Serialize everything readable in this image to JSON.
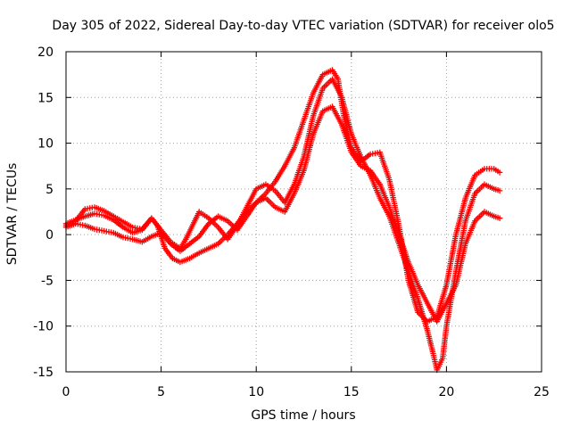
{
  "chart_data": {
    "type": "scatter",
    "title": "Day 305 of 2022, Sidereal Day-to-day VTEC variation (SDTVAR) for receiver olo5",
    "xlabel": "GPS time / hours",
    "ylabel": "SDTVAR / TECUs",
    "xlim": [
      0,
      25
    ],
    "ylim": [
      -15,
      20
    ],
    "xticks": [
      "0",
      "5",
      "10",
      "15",
      "20",
      "25"
    ],
    "yticks": [
      "20",
      "15",
      "10",
      "5",
      "0",
      "-5",
      "-10",
      "-15"
    ],
    "grid": true,
    "marker": "plus",
    "color": "#ff0000",
    "series": [
      {
        "x": [
          0.0,
          0.5,
          1.0,
          1.5,
          2.0,
          2.5,
          3.0,
          3.5,
          4.0,
          4.5,
          4.8,
          5.2,
          5.6,
          6.0,
          6.5,
          7.0,
          7.5,
          8.0,
          8.5,
          9.0,
          9.5,
          10.0,
          10.5,
          11.0,
          11.5,
          12.0,
          12.5,
          13.0,
          13.5,
          14.0,
          14.3,
          14.6,
          15.0,
          15.5,
          16.0,
          16.5,
          17.0,
          17.5,
          18.0,
          18.5,
          19.0,
          19.5,
          20.0,
          20.5,
          21.0,
          21.5,
          22.0,
          22.5,
          22.8
        ],
        "y": [
          1.2,
          1.6,
          2.0,
          2.3,
          2.1,
          1.6,
          0.8,
          0.2,
          0.5,
          1.8,
          1.0,
          -1.5,
          -2.6,
          -3.0,
          -2.6,
          -2.0,
          -1.5,
          -1.0,
          0.0,
          1.2,
          2.5,
          3.5,
          4.5,
          5.8,
          7.5,
          9.5,
          12.5,
          15.5,
          17.5,
          18.0,
          17.0,
          13.0,
          9.5,
          8.0,
          8.8,
          9.0,
          6.0,
          1.0,
          -5.0,
          -8.5,
          -9.5,
          -9.0,
          -5.5,
          0.0,
          4.0,
          6.5,
          7.2,
          7.2,
          6.8
        ]
      },
      {
        "x": [
          0.0,
          0.5,
          1.0,
          1.5,
          2.0,
          2.5,
          3.0,
          3.5,
          4.0,
          4.5,
          5.0,
          5.5,
          6.0,
          6.3,
          7.0,
          7.5,
          8.0,
          8.5,
          9.0,
          9.5,
          10.0,
          10.5,
          11.0,
          11.5,
          12.0,
          12.5,
          13.0,
          13.5,
          14.0,
          14.5,
          15.0,
          15.5,
          16.0,
          16.5,
          17.0,
          17.5,
          18.0,
          18.5,
          19.0,
          19.3,
          19.5,
          19.8,
          20.0,
          20.5,
          21.0,
          21.5,
          22.0,
          22.5,
          22.8
        ],
        "y": [
          1.0,
          1.5,
          2.8,
          3.0,
          2.6,
          2.0,
          1.4,
          0.8,
          0.6,
          1.8,
          0.5,
          -0.8,
          -1.5,
          -0.5,
          2.5,
          1.8,
          0.8,
          -0.5,
          1.0,
          3.0,
          5.0,
          5.5,
          4.8,
          3.5,
          5.5,
          8.5,
          13.0,
          16.0,
          17.0,
          15.0,
          11.0,
          8.5,
          6.5,
          4.0,
          2.0,
          -1.0,
          -4.0,
          -7.0,
          -10.5,
          -13.0,
          -14.8,
          -13.5,
          -10.0,
          -4.0,
          1.5,
          4.5,
          5.5,
          5.0,
          4.8
        ]
      },
      {
        "x": [
          0.0,
          0.5,
          1.0,
          1.5,
          2.0,
          2.5,
          3.0,
          3.5,
          4.0,
          4.5,
          5.0,
          5.5,
          6.0,
          6.5,
          7.0,
          7.5,
          8.0,
          8.5,
          9.0,
          9.5,
          10.0,
          10.5,
          11.0,
          11.5,
          12.0,
          12.5,
          13.0,
          13.5,
          14.0,
          14.5,
          15.0,
          15.5,
          16.0,
          16.5,
          17.0,
          17.5,
          18.0,
          18.5,
          19.0,
          19.5,
          20.0,
          20.5,
          21.0,
          21.5,
          22.0,
          22.5,
          22.8
        ],
        "y": [
          0.8,
          1.2,
          1.0,
          0.6,
          0.4,
          0.2,
          -0.3,
          -0.5,
          -0.8,
          -0.2,
          0.2,
          -1.0,
          -1.8,
          -1.0,
          -0.2,
          1.2,
          2.0,
          1.5,
          0.5,
          2.0,
          3.5,
          4.0,
          3.0,
          2.5,
          4.5,
          7.0,
          11.0,
          13.5,
          14.0,
          12.0,
          9.0,
          7.5,
          7.0,
          5.5,
          3.0,
          0.0,
          -3.0,
          -5.5,
          -7.5,
          -9.5,
          -7.5,
          -5.5,
          -1.0,
          1.5,
          2.5,
          2.0,
          1.8
        ]
      }
    ]
  }
}
